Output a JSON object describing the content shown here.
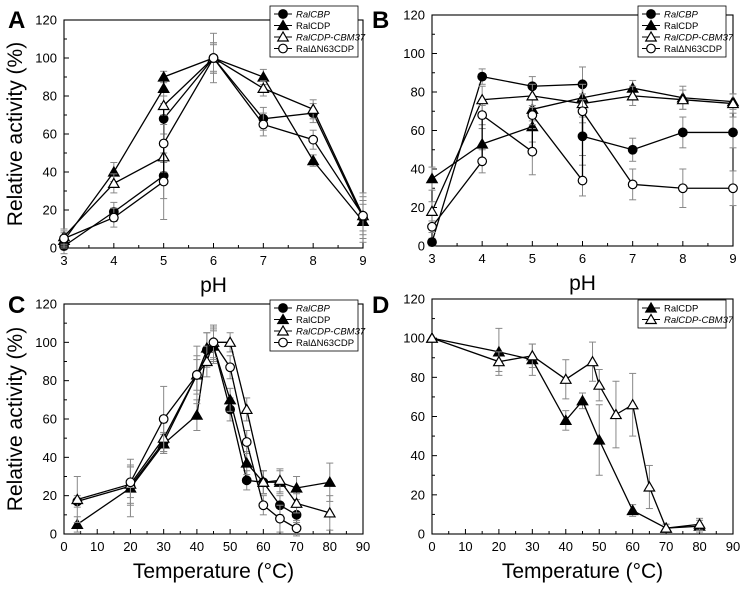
{
  "figure": {
    "markers": {
      "RalCBP": "filled-circle",
      "RalCDP": "filled-triangle",
      "RalCDP-CBM37": "open-triangle",
      "RalΔN63CDP": "open-circle"
    }
  },
  "chart_data": [
    {
      "panel": "A",
      "type": "line",
      "xlabel": "pH",
      "ylabel": "Relative activity (%)",
      "xlim": [
        3,
        9
      ],
      "ylim": [
        0,
        120
      ],
      "xticks": [
        3,
        4,
        5,
        6,
        7,
        8,
        9
      ],
      "yticks": [
        0,
        20,
        40,
        60,
        80,
        100,
        120
      ],
      "legend_position": "top-right",
      "series": [
        {
          "name": "RalCBP",
          "marker": "filled-circle",
          "x": [
            3,
            4,
            5,
            5,
            6,
            7,
            8,
            9
          ],
          "y": [
            1,
            19,
            38,
            68,
            100,
            68,
            71,
            16
          ],
          "err": [
            4,
            5,
            12,
            8,
            8,
            6,
            5,
            7
          ]
        },
        {
          "name": "RalCDP",
          "marker": "filled-triangle",
          "x": [
            3,
            4,
            5,
            5,
            6,
            7,
            8,
            9
          ],
          "y": [
            4,
            40,
            84,
            90,
            100,
            90,
            46,
            14
          ],
          "err": [
            4,
            5,
            4,
            3,
            8,
            4,
            3,
            11
          ]
        },
        {
          "name": "RalCDP-CBM37",
          "marker": "open-triangle",
          "x": [
            3,
            4,
            5,
            5,
            6,
            7,
            8,
            9
          ],
          "y": [
            6,
            34,
            48,
            75,
            100,
            84,
            73,
            17
          ],
          "err": [
            4,
            5,
            8,
            5,
            7,
            4,
            5,
            10
          ]
        },
        {
          "name": "RalΔN63CDP",
          "marker": "open-circle",
          "x": [
            3,
            4,
            5,
            5,
            6,
            7,
            8,
            9
          ],
          "y": [
            5,
            16,
            35,
            55,
            100,
            65,
            57,
            17
          ],
          "err": [
            4,
            5,
            20,
            10,
            13,
            6,
            5,
            12
          ]
        }
      ]
    },
    {
      "panel": "B",
      "type": "line",
      "xlabel": "pH",
      "ylabel": "",
      "xlim": [
        3,
        9
      ],
      "ylim": [
        0,
        120
      ],
      "xticks": [
        3,
        4,
        5,
        6,
        7,
        8,
        9
      ],
      "yticks": [
        0,
        20,
        40,
        60,
        80,
        100,
        120
      ],
      "legend_position": "top-right",
      "series": [
        {
          "name": "RalCBP",
          "marker": "filled-circle",
          "x": [
            3,
            4,
            5,
            6,
            6,
            7,
            8,
            9
          ],
          "y": [
            2,
            88,
            83,
            84,
            57,
            50,
            59,
            59
          ],
          "err": [
            2,
            4,
            5,
            9,
            10,
            6,
            8,
            8
          ]
        },
        {
          "name": "RalCDP",
          "marker": "filled-triangle",
          "x": [
            3,
            4,
            5,
            5,
            6,
            7,
            8,
            9
          ],
          "y": [
            35,
            53,
            62,
            71,
            77,
            82,
            77,
            75
          ],
          "err": [
            6,
            8,
            8,
            6,
            7,
            4,
            6,
            4
          ]
        },
        {
          "name": "RalCDP-CBM37",
          "marker": "open-triangle",
          "x": [
            3,
            4,
            5,
            6,
            7,
            8,
            9
          ],
          "y": [
            18,
            76,
            78,
            74,
            78,
            76,
            74
          ],
          "err": [
            5,
            7,
            6,
            5,
            5,
            5,
            5
          ]
        },
        {
          "name": "RalΔN63CDP",
          "marker": "open-circle",
          "x": [
            3,
            4,
            4,
            5,
            5,
            6,
            6,
            7,
            8,
            9
          ],
          "y": [
            10,
            44,
            68,
            49,
            68,
            34,
            70,
            32,
            30,
            30
          ],
          "err": [
            3,
            6,
            5,
            12,
            5,
            8,
            6,
            8,
            10,
            9
          ]
        }
      ]
    },
    {
      "panel": "C",
      "type": "line",
      "xlabel": "Temperature (°C)",
      "ylabel": "Relative activity (%)",
      "xlim": [
        0,
        90
      ],
      "ylim": [
        0,
        120
      ],
      "xticks": [
        0,
        10,
        20,
        30,
        40,
        50,
        60,
        70,
        80,
        90
      ],
      "yticks": [
        0,
        20,
        40,
        60,
        80,
        100,
        120
      ],
      "legend_position": "top-right",
      "series": [
        {
          "name": "RalCBP",
          "marker": "filled-circle",
          "x": [
            4,
            20,
            30,
            40,
            43,
            45,
            50,
            55,
            60,
            65,
            70
          ],
          "y": [
            17,
            25,
            48,
            83,
            96,
            98,
            65,
            28,
            27,
            15,
            10
          ],
          "err": [
            3,
            10,
            5,
            8,
            9,
            8,
            6,
            5,
            6,
            5,
            4
          ]
        },
        {
          "name": "RalCDP",
          "marker": "filled-triangle",
          "x": [
            4,
            20,
            30,
            40,
            43,
            45,
            50,
            55,
            60,
            65,
            70,
            80
          ],
          "y": [
            5,
            24,
            47,
            62,
            97,
            98,
            70,
            37,
            27,
            27,
            24,
            27
          ],
          "err": [
            4,
            15,
            5,
            8,
            8,
            9,
            6,
            6,
            6,
            6,
            6,
            10
          ]
        },
        {
          "name": "RalCDP-CBM37",
          "marker": "open-triangle",
          "x": [
            4,
            20,
            30,
            40,
            43,
            45,
            50,
            55,
            60,
            65,
            70,
            80
          ],
          "y": [
            18,
            26,
            50,
            83,
            90,
            100,
            100,
            65,
            27,
            28,
            16,
            11
          ],
          "err": [
            12,
            10,
            8,
            10,
            8,
            9,
            5,
            6,
            6,
            6,
            5,
            9
          ]
        },
        {
          "name": "RalΔN63CDP",
          "marker": "open-circle",
          "x": [
            20,
            30,
            40,
            45,
            50,
            55,
            60,
            65,
            70
          ],
          "y": [
            27,
            60,
            83,
            100,
            87,
            48,
            15,
            8,
            3
          ],
          "err": [
            8,
            17,
            15,
            8,
            6,
            6,
            5,
            7,
            4
          ]
        }
      ]
    },
    {
      "panel": "D",
      "type": "line",
      "xlabel": "Temperature (°C)",
      "ylabel": "",
      "xlim": [
        0,
        90
      ],
      "ylim": [
        0,
        120
      ],
      "xticks": [
        0,
        10,
        20,
        30,
        40,
        50,
        60,
        70,
        80,
        90
      ],
      "yticks": [
        0,
        20,
        40,
        60,
        80,
        100,
        120
      ],
      "legend_position": "top-right",
      "series": [
        {
          "name": "RalCDP",
          "marker": "filled-triangle",
          "x": [
            0,
            20,
            30,
            40,
            45,
            50,
            60,
            70,
            80
          ],
          "y": [
            100,
            93,
            89,
            58,
            68,
            48,
            12,
            3,
            4
          ],
          "err": [
            0,
            12,
            8,
            5,
            4,
            18,
            3,
            2,
            3
          ]
        },
        {
          "name": "RalCDP-CBM37",
          "marker": "open-triangle",
          "x": [
            0,
            20,
            30,
            40,
            48,
            50,
            55,
            60,
            65,
            70,
            80
          ],
          "y": [
            100,
            88,
            91,
            79,
            88,
            76,
            61,
            66,
            24,
            3,
            5
          ],
          "err": [
            0,
            5,
            6,
            10,
            10,
            8,
            17,
            16,
            11,
            2,
            3
          ]
        }
      ]
    }
  ]
}
